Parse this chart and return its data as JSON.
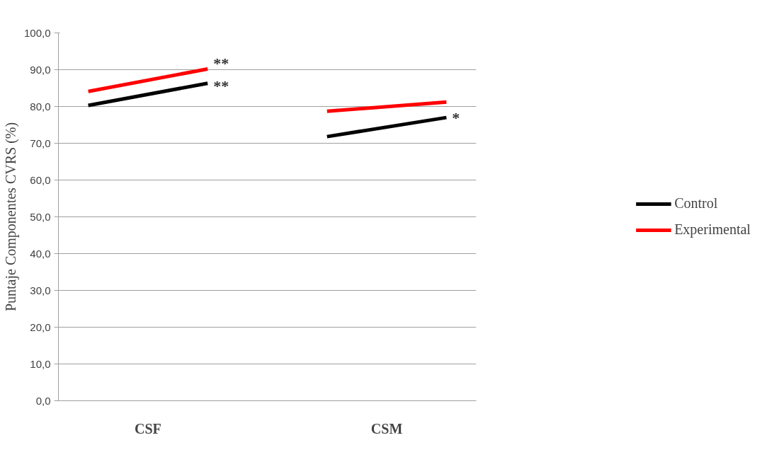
{
  "chart_data": {
    "type": "line",
    "ylabel": "Puntaje Componentes CVRS (%)",
    "categories": [
      null,
      "CSF",
      null,
      null,
      null,
      "CSM",
      null
    ],
    "ylim": [
      0,
      100
    ],
    "yticks": [
      {
        "value": 0,
        "label": "0,0"
      },
      {
        "value": 10,
        "label": "10,0"
      },
      {
        "value": 20,
        "label": "20,0"
      },
      {
        "value": 30,
        "label": "30,0"
      },
      {
        "value": 40,
        "label": "40,0"
      },
      {
        "value": 50,
        "label": "50,0"
      },
      {
        "value": 60,
        "label": "60,0"
      },
      {
        "value": 70,
        "label": "70,0"
      },
      {
        "value": 80,
        "label": "80,0"
      },
      {
        "value": 90,
        "label": "90,0"
      },
      {
        "value": 100,
        "label": "100,0"
      }
    ],
    "series": [
      {
        "name": "Control",
        "color": "#000000",
        "values": [
          80.3,
          null,
          86.3,
          null,
          null,
          null,
          null
        ]
      },
      {
        "name": "Experimental",
        "color": "#ff0000",
        "values": [
          84.1,
          null,
          90.2,
          null,
          null,
          null,
          null
        ]
      },
      {
        "color": "#000000",
        "values": [
          null,
          null,
          null,
          null,
          71.8,
          null,
          77.0
        ]
      },
      {
        "color": "#ff0000",
        "values": [
          null,
          null,
          null,
          null,
          78.7,
          null,
          81.2
        ]
      }
    ],
    "annotations": [
      "**",
      "**",
      "*"
    ],
    "grid": "y",
    "legend": "right",
    "marker": "none",
    "line_style": "solid"
  }
}
